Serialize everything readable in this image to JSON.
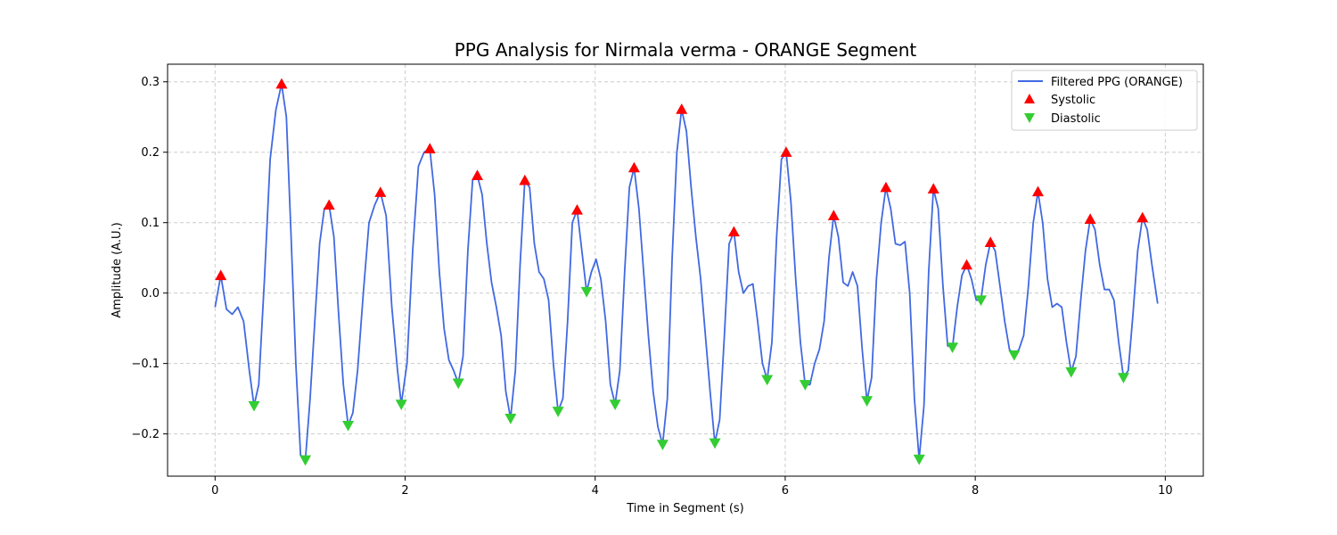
{
  "chart_data": {
    "type": "line",
    "title": "PPG Analysis for Nirmala verma - ORANGE Segment",
    "xlabel": "Time in Segment (s)",
    "ylabel": "Amplitude (A.U.)",
    "xlim": [
      -0.5,
      10.4
    ],
    "ylim": [
      -0.26,
      0.325
    ],
    "xticks": [
      0,
      2,
      4,
      6,
      8,
      10
    ],
    "xtick_labels": [
      "0",
      "2",
      "4",
      "6",
      "8",
      "10"
    ],
    "yticks": [
      -0.2,
      -0.1,
      0.0,
      0.1,
      0.2,
      0.3
    ],
    "ytick_labels": [
      "−0.2",
      "−0.1",
      "0.0",
      "0.1",
      "0.2",
      "0.3"
    ],
    "grid": true,
    "legend_position": "top-right",
    "colors": {
      "line": "#4169e1",
      "systolic": "#ff0000",
      "diastolic": "#32cd32"
    },
    "series": [
      {
        "name": "Filtered PPG (ORANGE)",
        "kind": "line",
        "x": [
          0,
          0.06,
          0.12,
          0.18,
          0.24,
          0.3,
          0.36,
          0.41,
          0.46,
          0.52,
          0.58,
          0.64,
          0.7,
          0.75,
          0.8,
          0.85,
          0.9,
          0.95,
          1.0,
          1.05,
          1.1,
          1.15,
          1.2,
          1.25,
          1.3,
          1.35,
          1.4,
          1.45,
          1.5,
          1.56,
          1.62,
          1.68,
          1.74,
          1.8,
          1.86,
          1.92,
          1.96,
          2.02,
          2.08,
          2.14,
          2.2,
          2.26,
          2.31,
          2.36,
          2.41,
          2.46,
          2.51,
          2.56,
          2.61,
          2.66,
          2.71,
          2.76,
          2.81,
          2.86,
          2.91,
          2.96,
          3.01,
          3.06,
          3.11,
          3.16,
          3.21,
          3.26,
          3.31,
          3.36,
          3.41,
          3.46,
          3.51,
          3.56,
          3.61,
          3.66,
          3.71,
          3.76,
          3.81,
          3.86,
          3.91,
          3.96,
          4.01,
          4.06,
          4.11,
          4.16,
          4.21,
          4.26,
          4.31,
          4.36,
          4.41,
          4.46,
          4.51,
          4.56,
          4.61,
          4.66,
          4.71,
          4.76,
          4.81,
          4.86,
          4.91,
          4.96,
          5.01,
          5.06,
          5.11,
          5.16,
          5.21,
          5.26,
          5.31,
          5.36,
          5.41,
          5.46,
          5.51,
          5.56,
          5.61,
          5.66,
          5.71,
          5.76,
          5.81,
          5.86,
          5.91,
          5.96,
          6.01,
          6.06,
          6.11,
          6.16,
          6.21,
          6.26,
          6.31,
          6.36,
          6.41,
          6.46,
          6.51,
          6.56,
          6.61,
          6.66,
          6.71,
          6.76,
          6.81,
          6.86,
          6.91,
          6.96,
          7.01,
          7.06,
          7.11,
          7.16,
          7.21,
          7.26,
          7.31,
          7.36,
          7.41,
          7.46,
          7.51,
          7.56,
          7.61,
          7.66,
          7.71,
          7.76,
          7.81,
          7.86,
          7.91,
          7.96,
          8.01,
          8.06,
          8.11,
          8.16,
          8.21,
          8.26,
          8.31,
          8.36,
          8.41,
          8.46,
          8.51,
          8.56,
          8.61,
          8.66,
          8.71,
          8.76,
          8.81,
          8.86,
          8.91,
          8.96,
          9.01,
          9.06,
          9.11,
          9.16,
          9.21,
          9.26,
          9.31,
          9.36,
          9.41,
          9.46,
          9.51,
          9.56,
          9.61,
          9.66,
          9.71,
          9.76,
          9.81,
          9.86,
          9.92
        ],
        "y": [
          -0.02,
          0.025,
          -0.023,
          -0.03,
          -0.02,
          -0.04,
          -0.11,
          -0.16,
          -0.13,
          0.02,
          0.19,
          0.26,
          0.297,
          0.25,
          0.08,
          -0.1,
          -0.23,
          -0.237,
          -0.15,
          -0.04,
          0.07,
          0.12,
          0.125,
          0.08,
          -0.03,
          -0.13,
          -0.188,
          -0.17,
          -0.11,
          0.0,
          0.1,
          0.125,
          0.143,
          0.11,
          -0.02,
          -0.11,
          -0.158,
          -0.1,
          0.06,
          0.18,
          0.2,
          0.205,
          0.14,
          0.03,
          -0.05,
          -0.095,
          -0.11,
          -0.128,
          -0.09,
          0.06,
          0.16,
          0.167,
          0.14,
          0.07,
          0.015,
          -0.02,
          -0.06,
          -0.14,
          -0.178,
          -0.11,
          0.04,
          0.16,
          0.15,
          0.07,
          0.03,
          0.02,
          -0.01,
          -0.1,
          -0.168,
          -0.15,
          -0.04,
          0.1,
          0.118,
          0.06,
          0.002,
          0.03,
          0.048,
          0.02,
          -0.04,
          -0.13,
          -0.158,
          -0.11,
          0.03,
          0.15,
          0.178,
          0.12,
          0.03,
          -0.06,
          -0.14,
          -0.19,
          -0.215,
          -0.15,
          0.05,
          0.2,
          0.261,
          0.23,
          0.15,
          0.08,
          0.02,
          -0.06,
          -0.14,
          -0.213,
          -0.18,
          -0.06,
          0.07,
          0.087,
          0.03,
          0.0,
          0.01,
          0.013,
          -0.04,
          -0.1,
          -0.123,
          -0.07,
          0.08,
          0.19,
          0.2,
          0.13,
          0.02,
          -0.07,
          -0.13,
          -0.13,
          -0.1,
          -0.08,
          -0.04,
          0.05,
          0.11,
          0.08,
          0.015,
          0.01,
          0.03,
          0.01,
          -0.08,
          -0.153,
          -0.12,
          0.02,
          0.1,
          0.15,
          0.12,
          0.07,
          0.068,
          0.073,
          0.0,
          -0.15,
          -0.236,
          -0.16,
          0.03,
          0.148,
          0.12,
          0.01,
          -0.075,
          -0.077,
          -0.02,
          0.025,
          0.04,
          0.02,
          -0.01,
          -0.01,
          0.04,
          0.072,
          0.06,
          0.01,
          -0.04,
          -0.08,
          -0.088,
          -0.08,
          -0.06,
          0.01,
          0.1,
          0.144,
          0.1,
          0.02,
          -0.02,
          -0.015,
          -0.02,
          -0.07,
          -0.112,
          -0.09,
          -0.01,
          0.06,
          0.105,
          0.09,
          0.04,
          0.005,
          0.005,
          -0.01,
          -0.07,
          -0.12,
          -0.11,
          -0.03,
          0.06,
          0.107,
          0.09,
          0.04,
          -0.015
        ]
      },
      {
        "name": "Systolic",
        "kind": "marker-up",
        "x": [
          0.06,
          0.7,
          1.2,
          1.74,
          2.26,
          2.76,
          3.26,
          3.81,
          4.41,
          4.91,
          5.46,
          6.01,
          6.51,
          7.06,
          7.56,
          7.91,
          8.16,
          8.66,
          9.21,
          9.76
        ],
        "y": [
          0.025,
          0.297,
          0.125,
          0.143,
          0.205,
          0.167,
          0.16,
          0.118,
          0.178,
          0.261,
          0.087,
          0.2,
          0.11,
          0.15,
          0.148,
          0.04,
          0.072,
          0.144,
          0.105,
          0.107
        ]
      },
      {
        "name": "Diastolic",
        "kind": "marker-down",
        "x": [
          0.41,
          0.95,
          1.4,
          1.96,
          2.56,
          3.11,
          3.61,
          3.91,
          4.21,
          4.71,
          5.26,
          5.81,
          6.21,
          6.86,
          7.41,
          7.76,
          8.06,
          8.41,
          9.01,
          9.56
        ],
        "y": [
          -0.16,
          -0.237,
          -0.188,
          -0.158,
          -0.128,
          -0.178,
          -0.168,
          0.002,
          -0.158,
          -0.215,
          -0.213,
          -0.123,
          -0.13,
          -0.153,
          -0.236,
          -0.077,
          -0.01,
          -0.088,
          -0.112,
          -0.12
        ]
      }
    ]
  }
}
